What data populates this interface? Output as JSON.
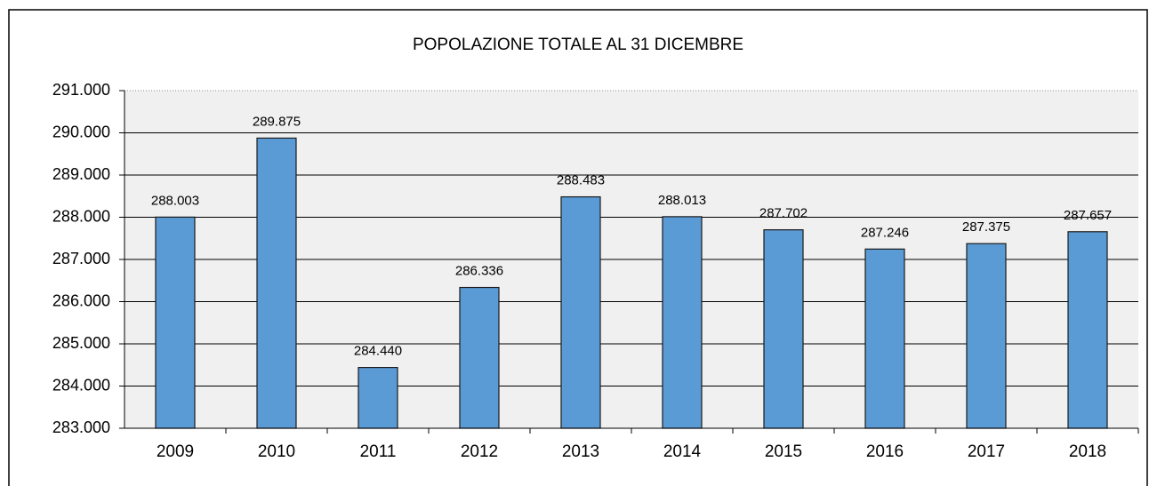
{
  "chart_data": {
    "type": "bar",
    "title": "POPOLAZIONE TOTALE AL 31 DICEMBRE",
    "categories": [
      "2009",
      "2010",
      "2011",
      "2012",
      "2013",
      "2014",
      "2015",
      "2016",
      "2017",
      "2018"
    ],
    "values": [
      288003,
      289875,
      284440,
      286336,
      288483,
      288013,
      287702,
      287246,
      287375,
      287657
    ],
    "value_labels": [
      "288.003",
      "289.875",
      "284.440",
      "286.336",
      "288.483",
      "288.013",
      "287.702",
      "287.246",
      "287.375",
      "287.657"
    ],
    "color": "#5b9bd5",
    "ylim": [
      283000,
      291000
    ],
    "yticks": [
      {
        "value": 283000,
        "label": "283.000"
      },
      {
        "value": 284000,
        "label": "284.000"
      },
      {
        "value": 285000,
        "label": "285.000"
      },
      {
        "value": 286000,
        "label": "286.000"
      },
      {
        "value": 287000,
        "label": "287.000"
      },
      {
        "value": 288000,
        "label": "288.000"
      },
      {
        "value": 289000,
        "label": "289.000"
      },
      {
        "value": 290000,
        "label": "290.000"
      },
      {
        "value": 291000,
        "label": "291.000"
      }
    ],
    "grid": true
  }
}
